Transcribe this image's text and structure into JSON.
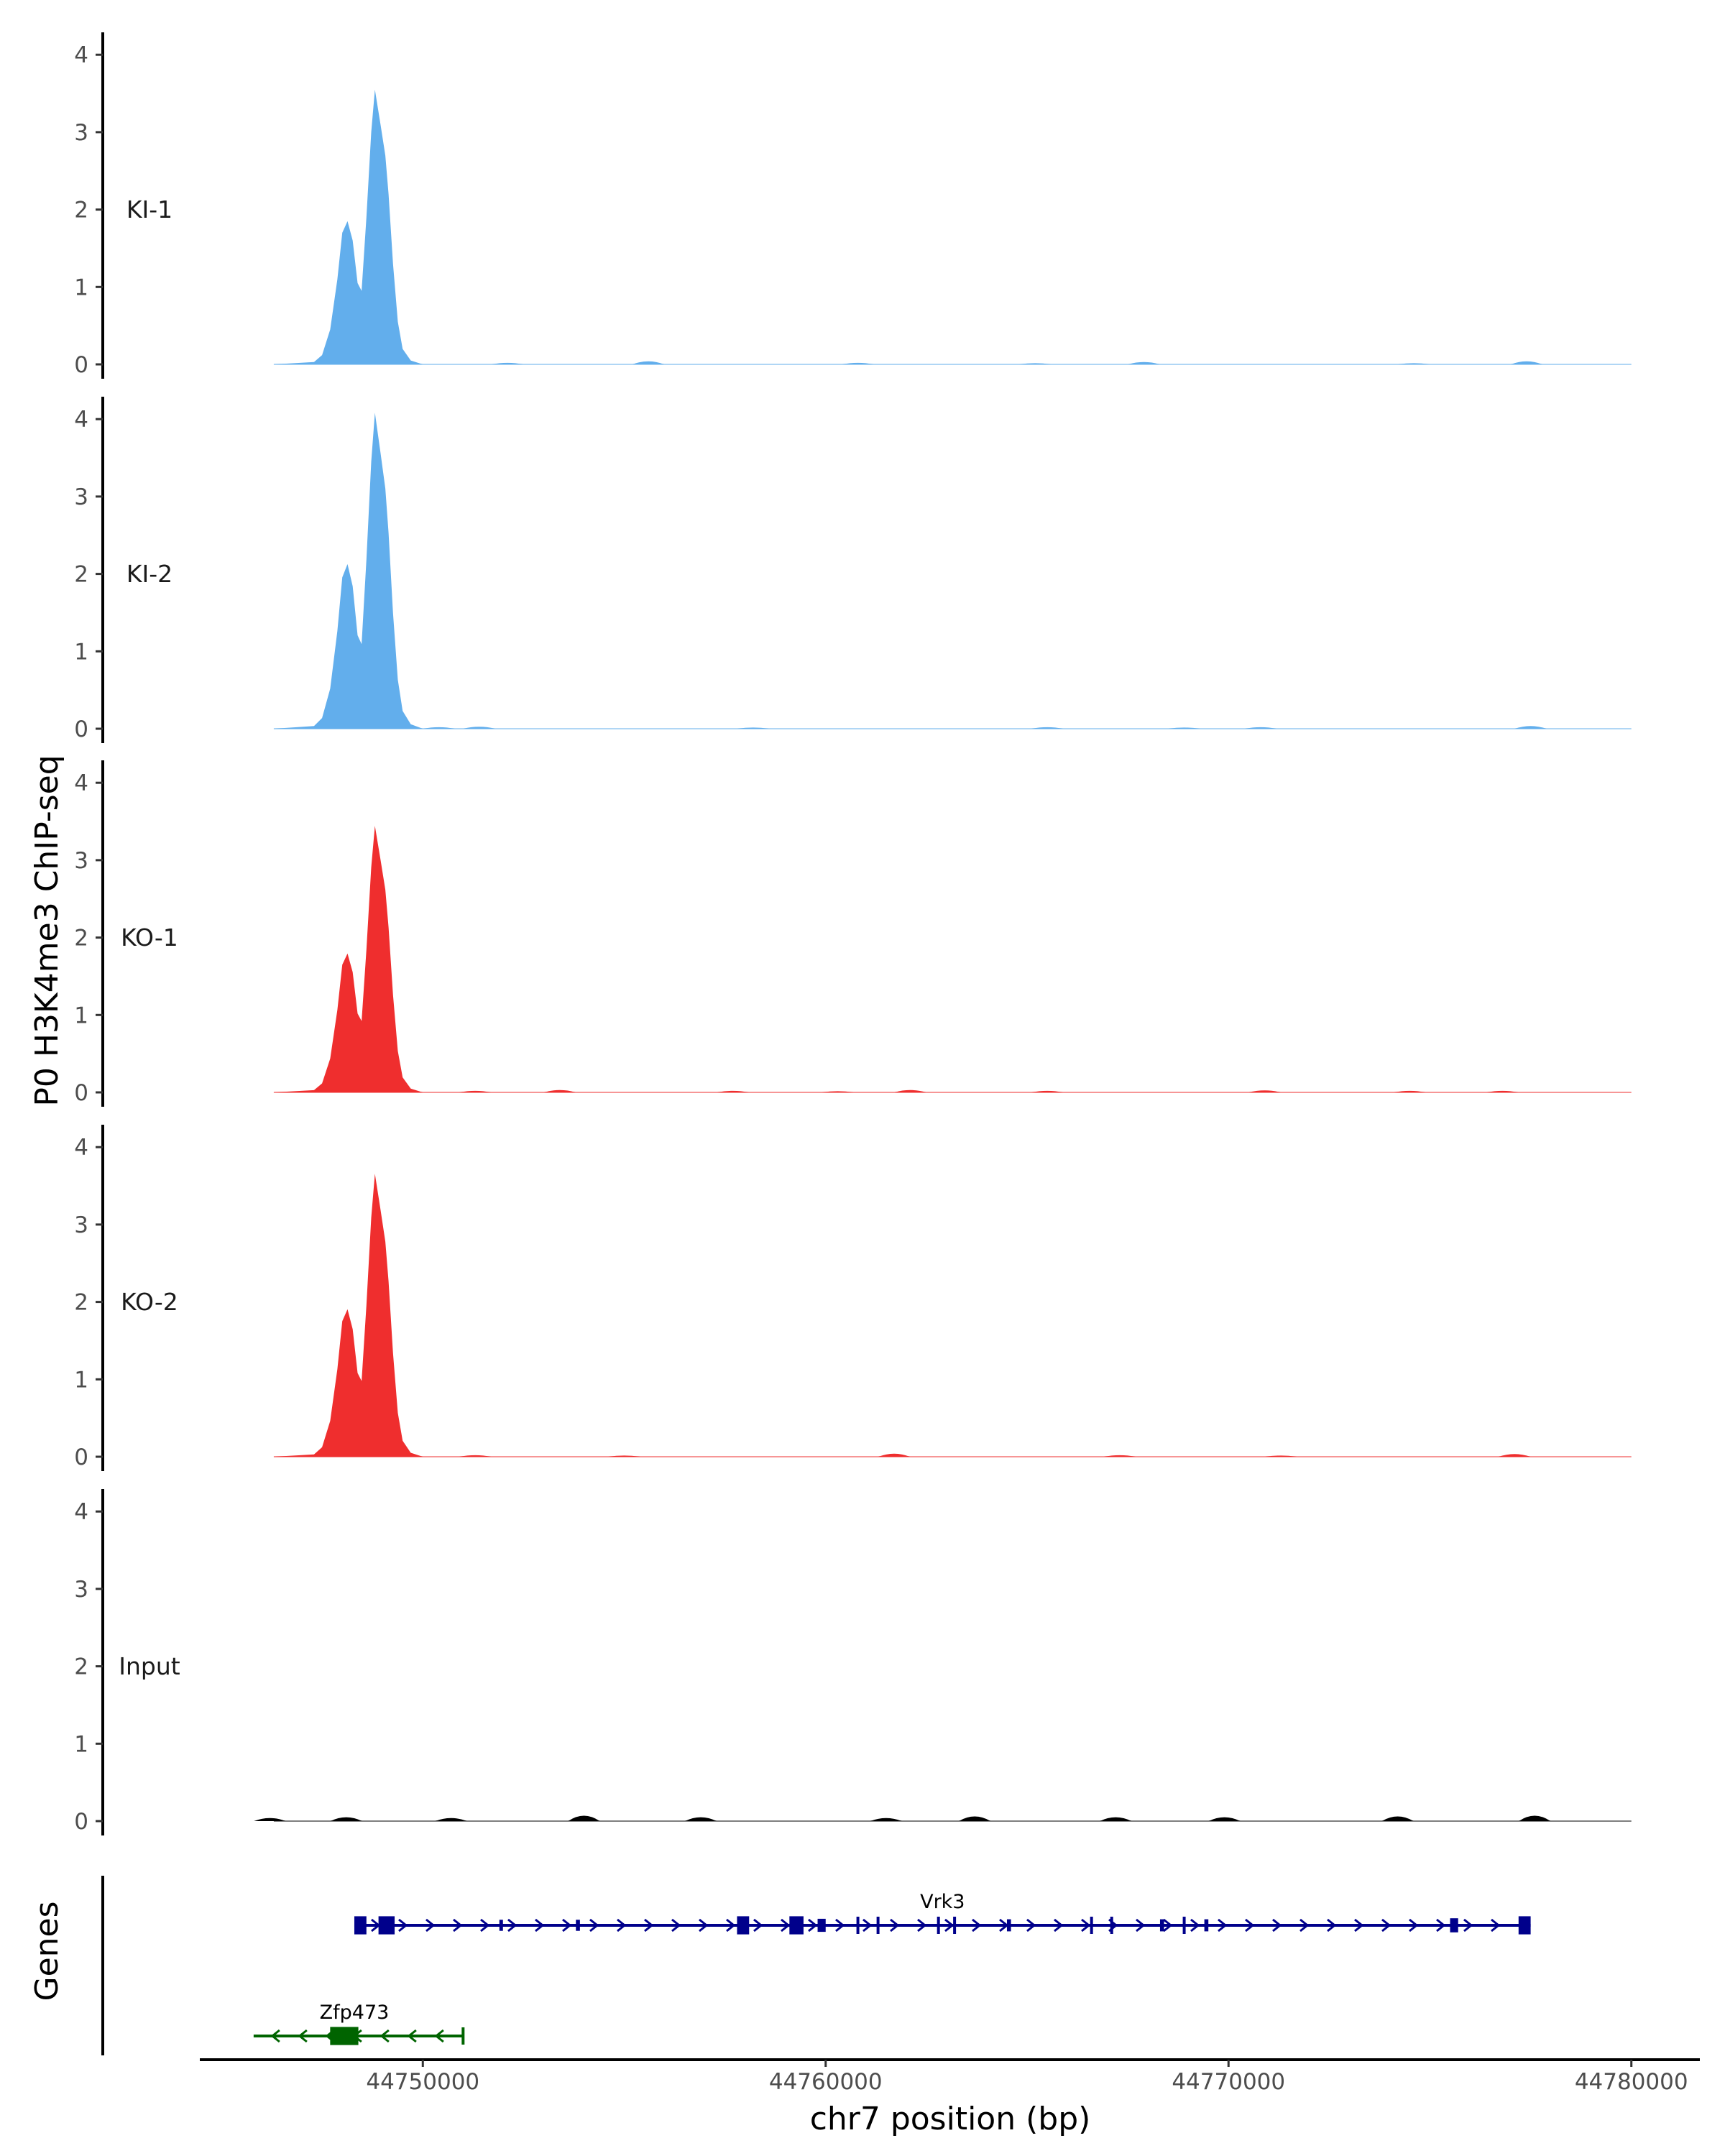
{
  "chart_data": {
    "type": "area",
    "ylabel": "P0 H3K4me3 ChIP-seq",
    "xlabel": "chr7 position (bp)",
    "genes_label": "Genes",
    "ylim": [
      0,
      4.2
    ],
    "y_ticks": [
      "0",
      "1",
      "2",
      "3",
      "4"
    ],
    "xlim": [
      44744500,
      44781700
    ],
    "x_ticks": [
      {
        "value": 44750000,
        "label": "44750000"
      },
      {
        "value": 44760000,
        "label": "44760000"
      },
      {
        "value": 44770000,
        "label": "44770000"
      },
      {
        "value": 44780000,
        "label": "44780000"
      }
    ],
    "peak_shape": [
      [
        44746300,
        0
      ],
      [
        44747300,
        0.03
      ],
      [
        44747500,
        0.12
      ],
      [
        44747700,
        0.45
      ],
      [
        44747880,
        1.1
      ],
      [
        44748000,
        1.7
      ],
      [
        44748130,
        1.85
      ],
      [
        44748260,
        1.6
      ],
      [
        44748380,
        1.05
      ],
      [
        44748480,
        0.95
      ],
      [
        44748600,
        1.9
      ],
      [
        44748720,
        3.0
      ],
      [
        44748810,
        3.55
      ],
      [
        44748950,
        3.1
      ],
      [
        44749070,
        2.7
      ],
      [
        44749150,
        2.2
      ],
      [
        44749260,
        1.3
      ],
      [
        44749380,
        0.55
      ],
      [
        44749500,
        0.2
      ],
      [
        44749700,
        0.05
      ],
      [
        44750000,
        0
      ]
    ],
    "series": [
      {
        "name": "KI-1",
        "color": "#62aeec",
        "peak_scale": 1.0,
        "noise": [
          [
            44752100,
            0.02
          ],
          [
            44755600,
            0.04
          ],
          [
            44760800,
            0.02
          ],
          [
            44765200,
            0.015
          ],
          [
            44767900,
            0.03
          ],
          [
            44774600,
            0.015
          ],
          [
            44777400,
            0.04
          ]
        ]
      },
      {
        "name": "KI-2",
        "color": "#62aeec",
        "peak_scale": 1.15,
        "noise": [
          [
            44750400,
            0.02
          ],
          [
            44751400,
            0.025
          ],
          [
            44758200,
            0.015
          ],
          [
            44765500,
            0.02
          ],
          [
            44768900,
            0.015
          ],
          [
            44770800,
            0.02
          ],
          [
            44777500,
            0.035
          ]
        ]
      },
      {
        "name": "KO-1",
        "color": "#ef2e2e",
        "peak_scale": 0.97,
        "noise": [
          [
            44751300,
            0.02
          ],
          [
            44753400,
            0.03
          ],
          [
            44757700,
            0.02
          ],
          [
            44760300,
            0.015
          ],
          [
            44762100,
            0.03
          ],
          [
            44765500,
            0.02
          ],
          [
            44770900,
            0.025
          ],
          [
            44774500,
            0.02
          ],
          [
            44776800,
            0.02
          ]
        ]
      },
      {
        "name": "KO-2",
        "color": "#ef2e2e",
        "peak_scale": 1.03,
        "noise": [
          [
            44751300,
            0.02
          ],
          [
            44755000,
            0.015
          ],
          [
            44761700,
            0.04
          ],
          [
            44767300,
            0.02
          ],
          [
            44771300,
            0.015
          ],
          [
            44777100,
            0.035
          ]
        ]
      },
      {
        "name": "Input",
        "color": "#000000",
        "peak_scale": 0.0,
        "noise": [
          [
            44746200,
            0.04
          ],
          [
            44748100,
            0.05
          ],
          [
            44750700,
            0.04
          ],
          [
            44754000,
            0.07
          ],
          [
            44756900,
            0.05
          ],
          [
            44761500,
            0.04
          ],
          [
            44763700,
            0.06
          ],
          [
            44767200,
            0.05
          ],
          [
            44769900,
            0.05
          ],
          [
            44774200,
            0.06
          ],
          [
            44777600,
            0.07
          ]
        ]
      }
    ],
    "genes": [
      {
        "name": "Vrk3",
        "strand": "+",
        "color": "#00008b",
        "start": 44748300,
        "end": 44777500,
        "label_pos": 44762900,
        "exons": [
          [
            44748300,
            44748600,
            0.9
          ],
          [
            44748900,
            44749300,
            0.9
          ],
          [
            44751900,
            44751980,
            0.55
          ],
          [
            44753800,
            44753900,
            0.55
          ],
          [
            44757800,
            44758100,
            0.9
          ],
          [
            44759100,
            44759450,
            0.9
          ],
          [
            44759800,
            44760000,
            0.65
          ],
          [
            44764500,
            44764600,
            0.6
          ],
          [
            44768300,
            44768400,
            0.6
          ],
          [
            44769400,
            44769500,
            0.6
          ],
          [
            44775500,
            44775700,
            0.7
          ],
          [
            44777200,
            44777500,
            0.9
          ]
        ],
        "introns_small": [
          44760800,
          44761300,
          44762800,
          44763200,
          44766600,
          44767100,
          44768900
        ]
      },
      {
        "name": "Zfp473",
        "strand": "-",
        "color": "#006400",
        "start": 44745800,
        "end": 44751000,
        "label_pos": 44748300,
        "exons": [
          [
            44747700,
            44748400,
            0.9
          ]
        ],
        "introns_small": [
          44751000
        ]
      }
    ]
  }
}
